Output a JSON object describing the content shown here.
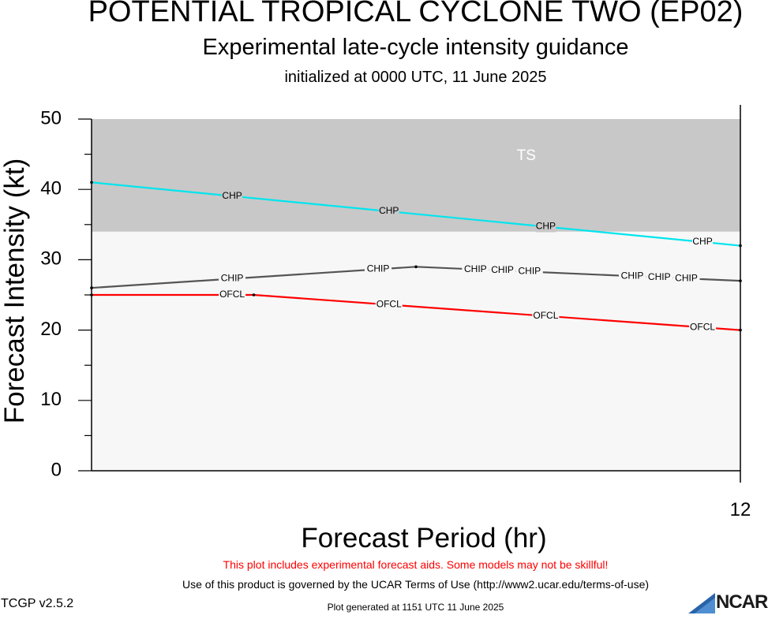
{
  "header": {
    "title": "POTENTIAL TROPICAL CYCLONE TWO (EP02)",
    "subtitle": "Experimental late-cycle intensity guidance",
    "initialized": "initialized at 0000 UTC, 11 June 2025"
  },
  "chart_data": {
    "type": "line",
    "xlabel": "Forecast Period (hr)",
    "ylabel": "Forecast Intensity (kt)",
    "xlim": [
      0,
      12
    ],
    "ylim": [
      0,
      50
    ],
    "y_ticks": [
      0,
      10,
      20,
      30,
      40,
      50
    ],
    "x_tick_labels": [
      "12"
    ],
    "bands": [
      {
        "label": "TS",
        "from": 34,
        "to": 50,
        "color": "#c8c8c8"
      }
    ],
    "plot_background": "#f7f7f7",
    "series": [
      {
        "name": "CHP",
        "color": "#00e5ee",
        "x": [
          0,
          12
        ],
        "values": [
          41,
          32
        ],
        "label_positions": [
          2.6,
          5.5,
          8.4,
          11.3
        ]
      },
      {
        "name": "CHIP",
        "color": "#555555",
        "x": [
          0,
          6,
          12
        ],
        "values": [
          26,
          29,
          27
        ],
        "label_positions": [
          2.6,
          5.3,
          7.1,
          7.6,
          8.1,
          10.0,
          10.5,
          11.0
        ]
      },
      {
        "name": "OFCL",
        "color": "#ff0000",
        "x": [
          0,
          3,
          12
        ],
        "values": [
          25,
          25,
          20
        ],
        "label_positions": [
          2.6,
          5.5,
          8.4,
          11.3
        ]
      }
    ]
  },
  "footer": {
    "warning": "This plot includes experimental forecast aids. Some models may not be skillful!",
    "terms": "Use of this product is governed by the UCAR Terms of Use (http://www2.ucar.edu/terms-of-use)",
    "version": "TCGP v2.5.2",
    "generated": "Plot generated at 1151 UTC   11 June 2025",
    "logo_text": "NCAR"
  }
}
